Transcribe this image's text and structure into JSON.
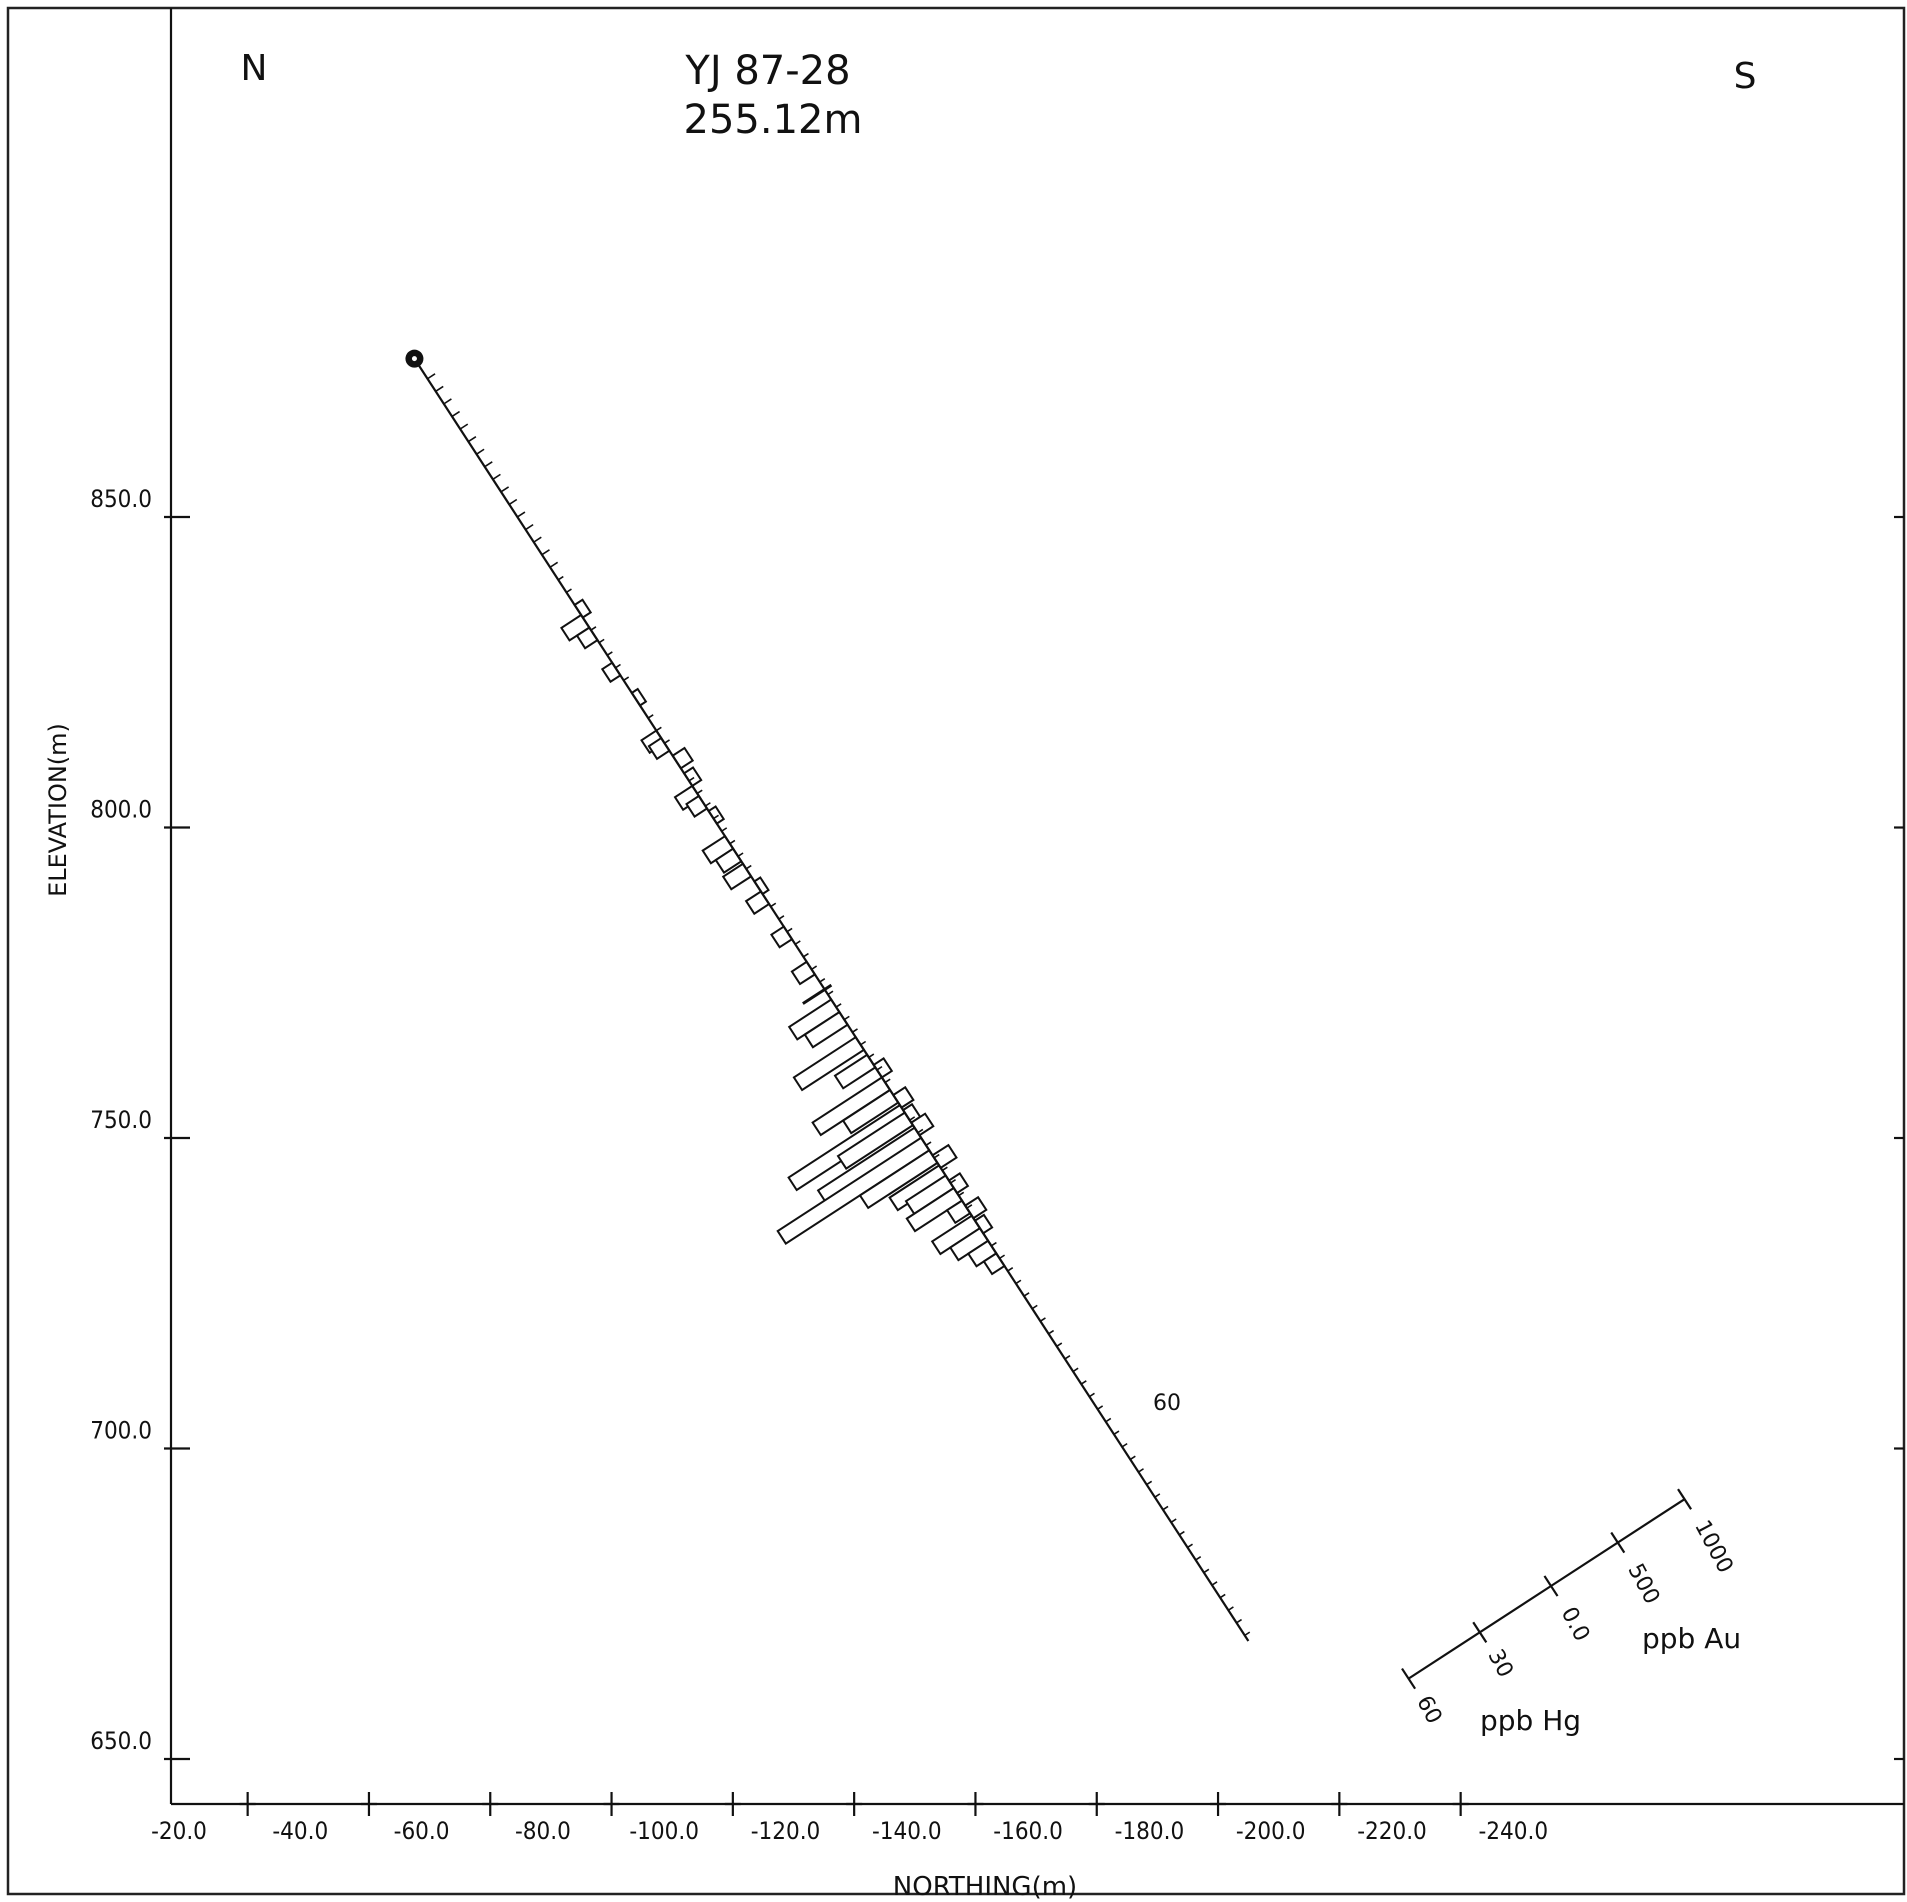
{
  "chart_data": {
    "type": "bar",
    "title": "YJ 87-28",
    "subtitle": "255.12m",
    "direction_labels": {
      "left": "N",
      "right": "S"
    },
    "xlabel": "NORTHING(m)",
    "ylabel": "ELEVATION(m)",
    "xlim": [
      -20,
      -245
    ],
    "ylim": [
      644,
      877
    ],
    "x_ticks": [
      "-20.0",
      "-40.0",
      "-60.0",
      "-80.0",
      "-100.0",
      "-120.0",
      "-140.0",
      "-160.0",
      "-180.0",
      "-200.0",
      "-220.0",
      "-240.0"
    ],
    "y_ticks": [
      "650.0",
      "700.0",
      "750.0",
      "800.0",
      "850.0"
    ],
    "drillhole": {
      "collar": {
        "northing": -57.5,
        "elevation": 875.5
      },
      "end": {
        "northing": -195.0,
        "elevation": 669.0
      },
      "length_label": "255.12m"
    },
    "scale_bars": [
      {
        "name": "ppb Au",
        "ticks": [
          "0.0",
          "500",
          "1000"
        ]
      },
      {
        "name": "ppb Hg",
        "ticks": [
          "30",
          "60"
        ]
      }
    ],
    "annotation": "60",
    "series": [
      {
        "name": "ppb Hg",
        "samples": [
          {
            "d": 51.0,
            "v": 8
          },
          {
            "d": 53.5,
            "v": 5
          },
          {
            "d": 60.5,
            "v": 4
          },
          {
            "d": 74.0,
            "v": 6
          },
          {
            "d": 75.5,
            "v": 5
          },
          {
            "d": 85.0,
            "v": 7
          },
          {
            "d": 87.0,
            "v": 5
          },
          {
            "d": 95.0,
            "v": 9
          },
          {
            "d": 97.5,
            "v": 7
          },
          {
            "d": 100.5,
            "v": 8
          },
          {
            "d": 106.0,
            "v": 6
          },
          {
            "d": 113.0,
            "v": 5
          },
          {
            "d": 120.0,
            "v": 6
          },
          {
            "d": 127.5,
            "v": 17
          },
          {
            "d": 130.0,
            "v": 14
          },
          {
            "d": 135.0,
            "v": 25
          },
          {
            "d": 138.5,
            "v": 13
          },
          {
            "d": 143.0,
            "v": 28
          },
          {
            "d": 145.5,
            "v": 19
          },
          {
            "d": 148.5,
            "v": 45
          },
          {
            "d": 150.0,
            "v": 27
          },
          {
            "d": 153.0,
            "v": 39
          },
          {
            "d": 155.0,
            "v": 58
          },
          {
            "d": 157.5,
            "v": 28
          },
          {
            "d": 160.5,
            "v": 20
          },
          {
            "d": 162.5,
            "v": 16
          },
          {
            "d": 165.0,
            "v": 19
          },
          {
            "d": 167.5,
            "v": 6
          },
          {
            "d": 170.5,
            "v": 16
          },
          {
            "d": 173.0,
            "v": 12
          },
          {
            "d": 175.5,
            "v": 8
          },
          {
            "d": 178.0,
            "v": 5
          }
        ]
      },
      {
        "name": "ppb Au",
        "samples": [
          {
            "d": 49.0,
            "v": 80
          },
          {
            "d": 66.5,
            "v": 60
          },
          {
            "d": 79.0,
            "v": 120
          },
          {
            "d": 82.5,
            "v": 90
          },
          {
            "d": 90.0,
            "v": 70
          },
          {
            "d": 104.0,
            "v": 60
          },
          {
            "d": 140.5,
            "v": 100
          },
          {
            "d": 146.5,
            "v": 120
          },
          {
            "d": 149.5,
            "v": 90
          },
          {
            "d": 152.0,
            "v": 140
          },
          {
            "d": 158.5,
            "v": 160
          },
          {
            "d": 163.5,
            "v": 110
          },
          {
            "d": 168.5,
            "v": 130
          },
          {
            "d": 171.5,
            "v": 90
          }
        ]
      }
    ],
    "grid": false
  }
}
